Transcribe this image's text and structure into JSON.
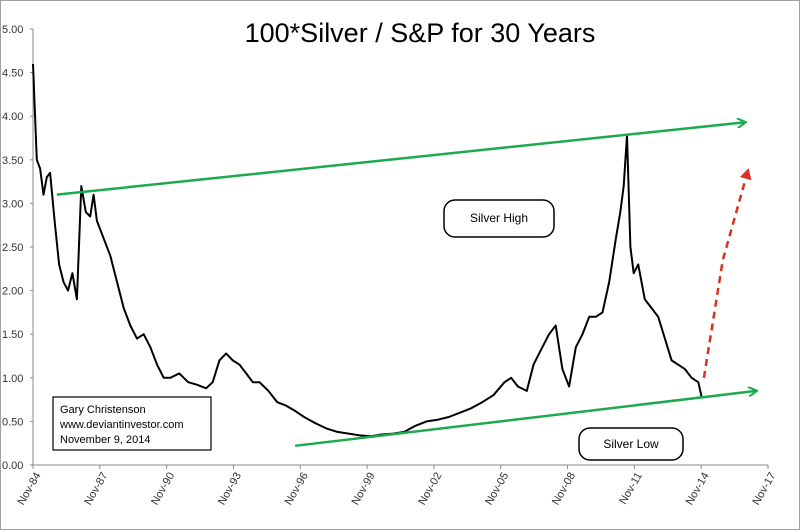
{
  "chart_data": {
    "type": "line",
    "title": "100*Silver / S&P for 30 Years",
    "xlabel": "",
    "ylabel": "",
    "x_ticks": [
      "Nov-84",
      "Nov-87",
      "Nov-90",
      "Nov-93",
      "Nov-96",
      "Nov-99",
      "Nov-02",
      "Nov-05",
      "Nov-08",
      "Nov-11",
      "Nov-14",
      "Nov-17"
    ],
    "y_ticks": [
      "0.00",
      "0.50",
      "1.00",
      "1.50",
      "2.00",
      "2.50",
      "3.00",
      "3.50",
      "4.00",
      "4.50",
      "5.00"
    ],
    "xlim": [
      1984.83,
      2017.83
    ],
    "ylim": [
      0,
      5
    ],
    "grid": false,
    "series": [
      {
        "color": "#000000",
        "x": [
          1984.83,
          1985.0,
          1985.15,
          1985.3,
          1985.45,
          1985.6,
          1985.8,
          1986.0,
          1986.2,
          1986.4,
          1986.6,
          1986.8,
          1987.0,
          1987.2,
          1987.4,
          1987.55,
          1987.7,
          1987.85,
          1988.0,
          1988.3,
          1988.6,
          1988.9,
          1989.2,
          1989.5,
          1989.8,
          1990.1,
          1990.4,
          1990.7,
          1991.0,
          1991.4,
          1991.8,
          1992.2,
          1992.6,
          1992.9,
          1993.2,
          1993.5,
          1993.8,
          1994.1,
          1994.4,
          1994.7,
          1995.0,
          1995.4,
          1995.8,
          1996.2,
          1996.6,
          1997.0,
          1997.5,
          1998.0,
          1998.5,
          1999.0,
          1999.5,
          2000.0,
          2000.5,
          2001.0,
          2001.5,
          2002.0,
          2002.5,
          2003.0,
          2003.5,
          2004.0,
          2004.5,
          2005.0,
          2005.5,
          2006.0,
          2006.3,
          2006.6,
          2007.0,
          2007.3,
          2007.6,
          2008.0,
          2008.3,
          2008.6,
          2008.9,
          2009.2,
          2009.5,
          2009.8,
          2010.1,
          2010.4,
          2010.7,
          2011.0,
          2011.2,
          2011.35,
          2011.5,
          2011.65,
          2011.8,
          2012.0,
          2012.3,
          2012.6,
          2012.9,
          2013.2,
          2013.5,
          2013.8,
          2014.1,
          2014.4,
          2014.7,
          2014.85
        ],
        "values": [
          4.6,
          3.5,
          3.4,
          3.1,
          3.3,
          3.35,
          2.8,
          2.3,
          2.1,
          2.0,
          2.2,
          1.9,
          3.2,
          2.9,
          2.85,
          3.1,
          2.8,
          2.7,
          2.6,
          2.4,
          2.1,
          1.8,
          1.6,
          1.45,
          1.5,
          1.35,
          1.15,
          1.0,
          1.0,
          1.05,
          0.95,
          0.92,
          0.88,
          0.95,
          1.2,
          1.28,
          1.2,
          1.15,
          1.05,
          0.95,
          0.95,
          0.85,
          0.72,
          0.68,
          0.62,
          0.55,
          0.48,
          0.42,
          0.38,
          0.36,
          0.34,
          0.33,
          0.35,
          0.36,
          0.38,
          0.45,
          0.5,
          0.52,
          0.55,
          0.6,
          0.65,
          0.72,
          0.8,
          0.95,
          1.0,
          0.9,
          0.85,
          1.15,
          1.3,
          1.5,
          1.6,
          1.1,
          0.9,
          1.35,
          1.5,
          1.7,
          1.7,
          1.75,
          2.1,
          2.6,
          2.9,
          3.2,
          3.78,
          2.5,
          2.2,
          2.3,
          1.9,
          1.8,
          1.7,
          1.45,
          1.2,
          1.15,
          1.1,
          1.0,
          0.95,
          0.78
        ]
      }
    ],
    "annotations": {
      "credit_lines": [
        "Gary Christenson",
        "www.deviantinvestor.com",
        "November 9, 2014"
      ],
      "label_high": "Silver High",
      "label_low": "Silver Low",
      "upper_trend": {
        "x": [
          1985.9,
          2016.8
        ],
        "y": [
          3.1,
          3.93
        ],
        "color": "#1daa4e"
      },
      "lower_trend": {
        "x": [
          1996.6,
          2017.3
        ],
        "y": [
          0.22,
          0.85
        ],
        "color": "#1daa4e"
      },
      "projection": {
        "x": [
          2014.95,
          2015.8,
          2016.9
        ],
        "y": [
          1.0,
          2.35,
          3.35
        ],
        "color": "#d93025"
      }
    }
  }
}
